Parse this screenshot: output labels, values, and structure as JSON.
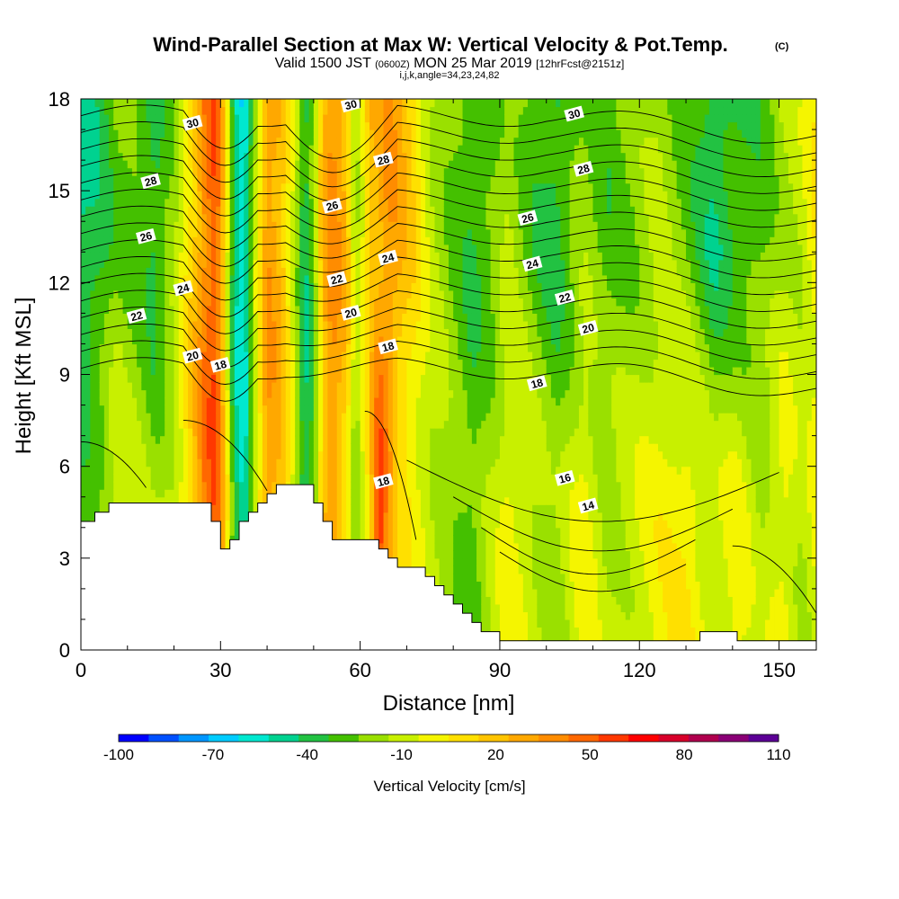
{
  "title": {
    "main": "Wind-Parallel Section at Max W: Vertical Velocity & Pot.Temp.",
    "copyright": "(C)",
    "valid_prefix": "Valid 1500 JST",
    "valid_utc": "(0600Z)",
    "valid_date": "MON 25 Mar 2019",
    "forecast": "[12hrFcst@2151z]",
    "grid_info": "i,j,k,angle=34,23,24,82"
  },
  "chart_data": {
    "type": "heatmap",
    "xlabel": "Distance [nm]",
    "ylabel": "Height [Kft MSL]",
    "xlim": [
      0,
      158
    ],
    "ylim": [
      0,
      18
    ],
    "xticks": [
      0,
      30,
      60,
      90,
      120,
      150
    ],
    "yticks": [
      0,
      3,
      6,
      9,
      12,
      15,
      18
    ],
    "colorbar": {
      "label": "Vertical Velocity [cm/s]",
      "tick_labels": [
        "-100",
        "-70",
        "-40",
        "-10",
        "20",
        "50",
        "80",
        "110"
      ],
      "bins": [
        -100,
        -90,
        -80,
        -70,
        -60,
        -50,
        -40,
        -30,
        -20,
        -10,
        0,
        10,
        20,
        30,
        40,
        50,
        60,
        70,
        80,
        90,
        100,
        110
      ],
      "colors": [
        "#0000ff",
        "#0050ff",
        "#0096ff",
        "#00ccff",
        "#00e8d0",
        "#00d290",
        "#22c242",
        "#44c000",
        "#9ae000",
        "#c8f000",
        "#f5f500",
        "#ffe000",
        "#ffc400",
        "#ffa800",
        "#ff8c00",
        "#ff6800",
        "#ff3800",
        "#ff0000",
        "#d8002a",
        "#b0004e",
        "#8a0076",
        "#5c0096"
      ]
    },
    "velocity_profile": {
      "distance_nm": [
        0,
        4,
        8,
        12,
        16,
        20,
        24,
        27,
        29,
        31,
        33,
        35,
        37,
        40,
        43,
        46,
        48,
        50,
        52,
        54,
        57,
        59,
        61,
        62,
        64,
        66,
        68,
        71,
        75,
        80,
        84,
        88,
        92,
        97,
        102,
        108,
        113,
        118,
        124,
        130,
        136,
        141,
        146,
        151,
        155,
        158
      ],
      "w_cm_s": [
        -25,
        -15,
        0,
        -5,
        -15,
        -5,
        25,
        55,
        60,
        20,
        -40,
        -55,
        -10,
        40,
        30,
        -10,
        -45,
        -30,
        20,
        40,
        15,
        -20,
        5,
        15,
        70,
        40,
        15,
        5,
        -5,
        -15,
        -25,
        -10,
        5,
        -5,
        -15,
        5,
        -10,
        -5,
        5,
        10,
        -5,
        5,
        -10,
        5,
        -10,
        0
      ],
      "upper_levels_w_cm_s": [
        -45,
        -35,
        -20,
        -25,
        -35,
        -15,
        20,
        50,
        60,
        15,
        -45,
        -60,
        -15,
        40,
        30,
        -5,
        -40,
        -20,
        30,
        45,
        30,
        -10,
        10,
        25,
        30,
        40,
        35,
        20,
        -5,
        -20,
        -30,
        -25,
        -10,
        -25,
        -35,
        -15,
        -25,
        -20,
        -10,
        -20,
        -40,
        -30,
        -25,
        -10,
        -5,
        10
      ]
    },
    "potential_temperature_contours": {
      "labeled_values": [
        14,
        16,
        18,
        20,
        22,
        24,
        26,
        28,
        30
      ],
      "labels": [
        {
          "value": "30",
          "x": 24,
          "y": 17.2
        },
        {
          "value": "30",
          "x": 58,
          "y": 17.8
        },
        {
          "value": "30",
          "x": 106,
          "y": 17.5
        },
        {
          "value": "28",
          "x": 15,
          "y": 15.3
        },
        {
          "value": "28",
          "x": 65,
          "y": 16.0
        },
        {
          "value": "28",
          "x": 108,
          "y": 15.7
        },
        {
          "value": "26",
          "x": 14,
          "y": 13.5
        },
        {
          "value": "26",
          "x": 54,
          "y": 14.5
        },
        {
          "value": "26",
          "x": 96,
          "y": 14.1
        },
        {
          "value": "24",
          "x": 22,
          "y": 11.8
        },
        {
          "value": "24",
          "x": 66,
          "y": 12.8
        },
        {
          "value": "24",
          "x": 97,
          "y": 12.6
        },
        {
          "value": "22",
          "x": 12,
          "y": 10.9
        },
        {
          "value": "22",
          "x": 55,
          "y": 12.1
        },
        {
          "value": "22",
          "x": 104,
          "y": 11.5
        },
        {
          "value": "20",
          "x": 24,
          "y": 9.6
        },
        {
          "value": "20",
          "x": 58,
          "y": 11.0
        },
        {
          "value": "20",
          "x": 109,
          "y": 10.5
        },
        {
          "value": "18",
          "x": 30,
          "y": 9.3
        },
        {
          "value": "18",
          "x": 66,
          "y": 9.9
        },
        {
          "value": "18",
          "x": 98,
          "y": 8.7
        },
        {
          "value": "18",
          "x": 65,
          "y": 5.5
        },
        {
          "value": "16",
          "x": 104,
          "y": 5.6
        },
        {
          "value": "14",
          "x": 109,
          "y": 4.7
        }
      ]
    },
    "terrain_kft": {
      "x": [
        0,
        3,
        6,
        8,
        11,
        15,
        19,
        22,
        25,
        28,
        30,
        32,
        34,
        36,
        38,
        40,
        42,
        44,
        46,
        48,
        50,
        52,
        54,
        56,
        58,
        60,
        62,
        64,
        66,
        68,
        70,
        72,
        74,
        76,
        78,
        80,
        82,
        84,
        86,
        88,
        90,
        93,
        96,
        100,
        110,
        120,
        130,
        133,
        137,
        141,
        145,
        150,
        155,
        158
      ],
      "h": [
        4.2,
        4.5,
        4.8,
        4.8,
        4.8,
        4.8,
        4.8,
        4.8,
        4.8,
        4.2,
        3.3,
        3.6,
        4.2,
        4.5,
        4.8,
        5.1,
        5.4,
        5.4,
        5.4,
        5.4,
        4.8,
        4.2,
        3.6,
        3.6,
        3.6,
        3.6,
        3.6,
        3.3,
        3.0,
        2.7,
        2.7,
        2.7,
        2.4,
        2.1,
        1.8,
        1.5,
        1.2,
        0.9,
        0.6,
        0.6,
        0.3,
        0.3,
        0.3,
        0.3,
        0.3,
        0.3,
        0.3,
        0.6,
        0.6,
        0.3,
        0.3,
        0.3,
        0.3,
        0.3
      ]
    }
  }
}
